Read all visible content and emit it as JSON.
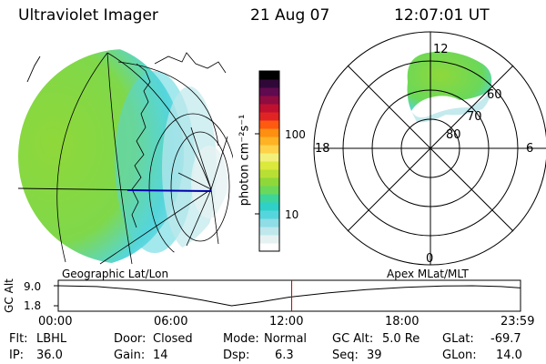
{
  "header": {
    "instrument": "Ultraviolet Imager",
    "date": "21 Aug 07",
    "time": "12:07:01 UT"
  },
  "colorbar": {
    "unit_label": "photon cm⁻²s⁻¹",
    "tick_labels": [
      "100",
      "10"
    ],
    "tick_values": [
      100,
      10
    ],
    "log_range": [
      3,
      600
    ],
    "colors": [
      "#ffffff",
      "#e6f2f2",
      "#bfe8ec",
      "#8fdde6",
      "#55d6dc",
      "#2fd0c8",
      "#3ed59a",
      "#6ad85a",
      "#8fd83a",
      "#b8e034",
      "#dbe83c",
      "#f2f07a",
      "#ffd24a",
      "#ffb224",
      "#ff8f10",
      "#ff5a10",
      "#e02424",
      "#c01030",
      "#900c40",
      "#600a50",
      "#300838",
      "#000000"
    ]
  },
  "polar": {
    "mlt_labels": [
      "12",
      "6",
      "0",
      "18"
    ],
    "lat_labels": [
      "60",
      "70",
      "80"
    ],
    "lat_values": [
      60,
      70,
      80
    ]
  },
  "timeline": {
    "y_axis_label": "GC Alt",
    "y_ticks": [
      "9.0",
      "1.8"
    ],
    "y_range": [
      1.8,
      9.0
    ],
    "left_title": "Geographic Lat/Lon",
    "right_title": "Apex  MLat/MLT",
    "x_tick_labels": [
      "00:00",
      "06:00",
      "12:00",
      "18:00",
      "23:59"
    ],
    "x_range_hours": [
      0,
      24
    ],
    "current_time_hours": 12.12,
    "altitude_points": [
      [
        0,
        9.0
      ],
      [
        2,
        8.7
      ],
      [
        4,
        7.6
      ],
      [
        6,
        5.6
      ],
      [
        7.5,
        3.8
      ],
      [
        9,
        1.8
      ],
      [
        10.5,
        3.2
      ],
      [
        12,
        4.9
      ],
      [
        14,
        6.4
      ],
      [
        16,
        7.6
      ],
      [
        18,
        8.4
      ],
      [
        20,
        8.9
      ],
      [
        21.5,
        9.0
      ],
      [
        23,
        8.7
      ],
      [
        24,
        8.2
      ]
    ]
  },
  "status": {
    "flt_label": "Flt:",
    "flt_value": "LBHL",
    "door_label": "Door:",
    "door_value": "Closed",
    "mode_label": "Mode:",
    "mode_value": "Normal",
    "gcalt_label": "GC Alt:",
    "gcalt_value": "5.0 Re",
    "glat_label": "GLat:",
    "glat_value": "-69.7",
    "ip_label": "IP:",
    "ip_value": "36.0",
    "gain_label": "Gain:",
    "gain_value": "14",
    "dsp_label": "Dsp:",
    "dsp_value": "6.3",
    "seq_label": "Seq:",
    "seq_value": "39",
    "glon_label": "GLon:",
    "glon_value": "14.0"
  }
}
